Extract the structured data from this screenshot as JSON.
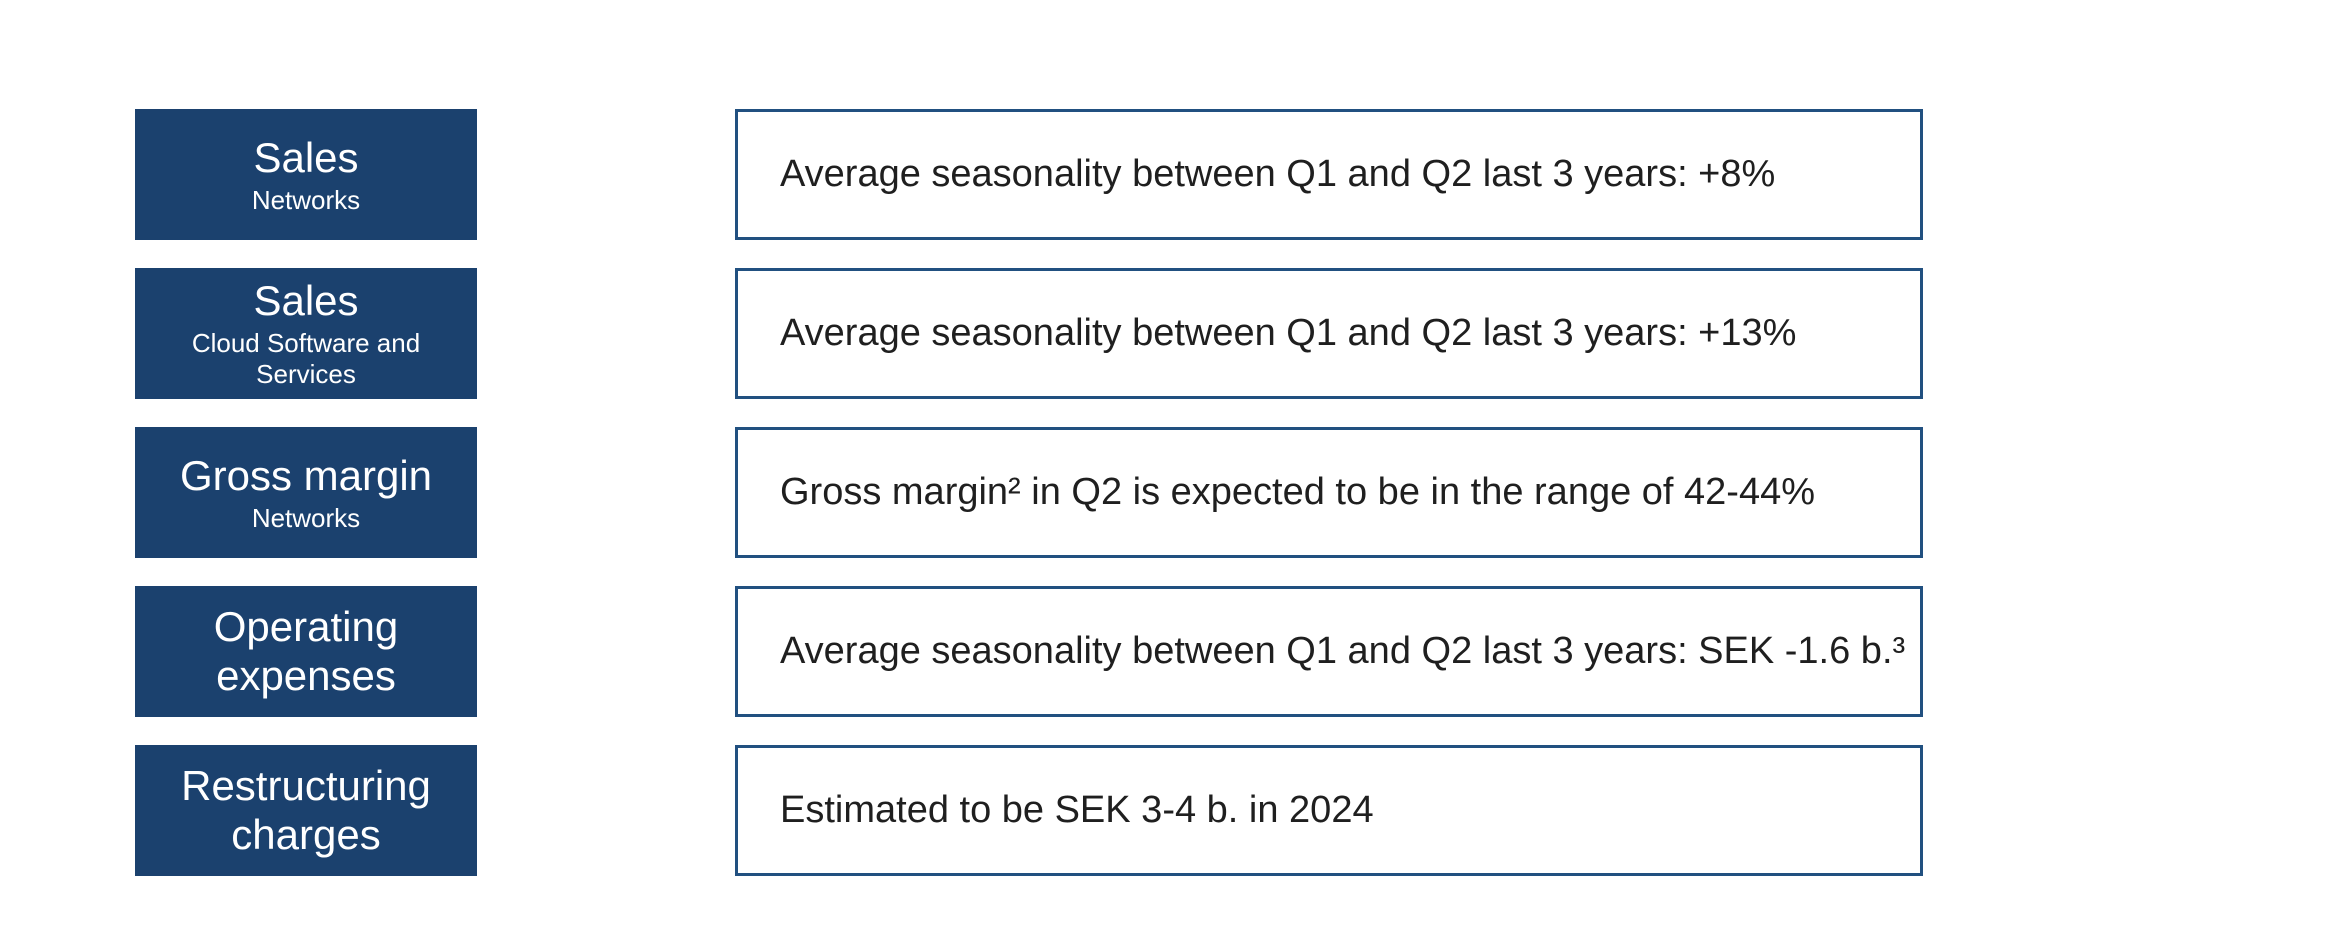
{
  "slide": {
    "description": "Planning assumptions guidance slide",
    "colors": {
      "label_box_fill": "#1b416e",
      "statement_box_border": "#215080",
      "statement_text": "#1f1f1f",
      "label_text": "#ffffff",
      "background": "#ffffff"
    },
    "rows": [
      {
        "label_title": "Sales",
        "label_subtitle": "Networks",
        "statement": "Average seasonality between Q1 and Q2 last 3 years: +8%"
      },
      {
        "label_title": "Sales",
        "label_subtitle": "Cloud Software and Services",
        "statement": "Average seasonality between Q1 and Q2 last 3 years: +13%"
      },
      {
        "label_title": "Gross margin",
        "label_subtitle": "Networks",
        "statement": "Gross margin² in Q2 is expected to be in the range of 42-44%"
      },
      {
        "label_title": "Operating expenses",
        "label_subtitle": "",
        "statement": "Average seasonality between Q1 and Q2 last 3 years: SEK -1.6 b.³"
      },
      {
        "label_title": "Restructuring charges",
        "label_subtitle": "",
        "statement": "Estimated to be SEK 3-4 b. in 2024"
      }
    ]
  }
}
